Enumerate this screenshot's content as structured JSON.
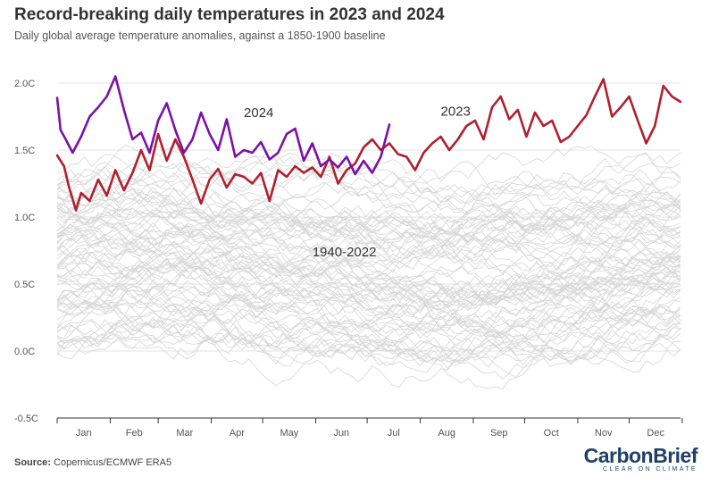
{
  "title": "Record-breaking daily temperatures in 2023 and 2024",
  "subtitle": "Daily global average temperature anomalies, against a 1850-1900 baseline",
  "source_label": "Source:",
  "source_text": "Copernicus/ECMWF ERA5",
  "logo_a": "Carbon",
  "logo_b": "Brief",
  "logo_tagline": "CLEAR ON CLIMATE",
  "colors": {
    "y2023": "#b0202e",
    "y2024": "#7b12a6",
    "historic": "#d6d6d6",
    "grid": "#e4e4e4",
    "axis": "#333333"
  },
  "chart_data": {
    "type": "line",
    "title": "Record-breaking daily temperatures in 2023 and 2024",
    "subtitle": "Daily global average temperature anomalies, against a 1850-1900 baseline",
    "xlabel": "",
    "ylabel": "",
    "x_tick_labels": [
      "Jan",
      "Feb",
      "Mar",
      "Apr",
      "May",
      "Jun",
      "Jul",
      "Aug",
      "Sep",
      "Oct",
      "Nov",
      "Dec"
    ],
    "y_tick_labels": [
      "-0.5C",
      "0.0C",
      "0.5C",
      "1.0C",
      "1.5C",
      "2.0C"
    ],
    "y_ticks": [
      -0.5,
      0.0,
      0.5,
      1.0,
      1.5,
      2.0
    ],
    "xlim": [
      1,
      365
    ],
    "ylim": [
      -0.5,
      2.1
    ],
    "grid": true,
    "x_unit": "day of year",
    "series": [
      {
        "name": "2023",
        "label_day": 150,
        "label_value": 1.79,
        "x": [
          1,
          5,
          8,
          12,
          15,
          20,
          25,
          30,
          35,
          40,
          45,
          50,
          55,
          60,
          65,
          70,
          75,
          80,
          85,
          90,
          95,
          100,
          105,
          110,
          115,
          120,
          125,
          130,
          135,
          140,
          145,
          150,
          155,
          160,
          165,
          170,
          175,
          180,
          185,
          190,
          195,
          200,
          205,
          210,
          215,
          220,
          225,
          230,
          235,
          240,
          245,
          250,
          255,
          260,
          265,
          270,
          275,
          280,
          285,
          290,
          295,
          300,
          305,
          310,
          315,
          320,
          325,
          330,
          335,
          340,
          345,
          350,
          355,
          360,
          365
        ],
        "values": [
          1.46,
          1.38,
          1.22,
          1.05,
          1.18,
          1.12,
          1.28,
          1.16,
          1.35,
          1.2,
          1.33,
          1.5,
          1.35,
          1.62,
          1.42,
          1.58,
          1.45,
          1.28,
          1.1,
          1.28,
          1.36,
          1.22,
          1.32,
          1.3,
          1.25,
          1.33,
          1.12,
          1.35,
          1.3,
          1.38,
          1.33,
          1.37,
          1.3,
          1.45,
          1.25,
          1.35,
          1.4,
          1.52,
          1.58,
          1.5,
          1.55,
          1.47,
          1.45,
          1.35,
          1.48,
          1.55,
          1.6,
          1.5,
          1.58,
          1.68,
          1.72,
          1.58,
          1.82,
          1.9,
          1.73,
          1.8,
          1.6,
          1.78,
          1.68,
          1.72,
          1.56,
          1.6,
          1.68,
          1.76,
          1.9,
          2.03,
          1.75,
          1.82,
          1.9,
          1.72,
          1.55,
          1.68,
          1.98,
          1.9,
          1.86
        ]
      },
      {
        "name": "2024",
        "label_day": 150,
        "label_value": 1.78,
        "x": [
          1,
          3,
          6,
          10,
          15,
          20,
          25,
          30,
          35,
          40,
          45,
          50,
          55,
          60,
          65,
          70,
          75,
          80,
          85,
          90,
          95,
          100,
          105,
          110,
          115,
          120,
          125,
          130,
          135,
          140,
          145,
          150,
          155,
          160,
          165,
          170,
          175,
          180,
          185,
          190,
          195
        ],
        "values": [
          1.89,
          1.65,
          1.58,
          1.48,
          1.6,
          1.75,
          1.82,
          1.9,
          2.05,
          1.8,
          1.58,
          1.63,
          1.48,
          1.72,
          1.85,
          1.65,
          1.48,
          1.58,
          1.78,
          1.62,
          1.5,
          1.73,
          1.45,
          1.5,
          1.48,
          1.56,
          1.43,
          1.48,
          1.62,
          1.66,
          1.42,
          1.55,
          1.38,
          1.43,
          1.37,
          1.45,
          1.32,
          1.42,
          1.33,
          1.45,
          1.69
        ]
      }
    ],
    "series_background": {
      "name": "1940-2022",
      "label_day": 180,
      "label_value": 0.74,
      "count": 83
    }
  }
}
